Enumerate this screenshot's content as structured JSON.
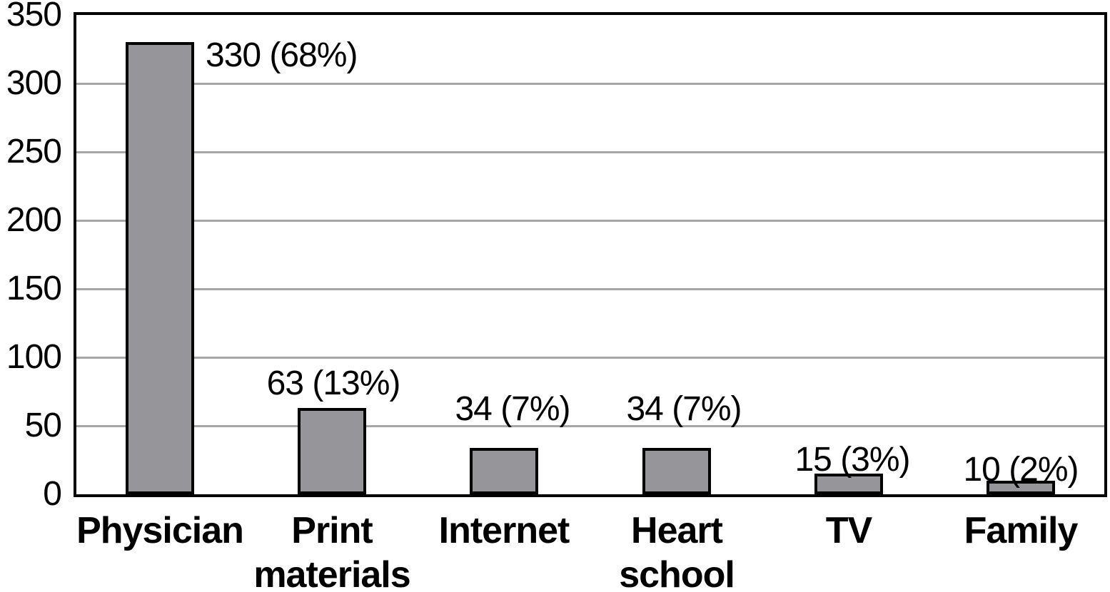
{
  "chart_data": {
    "type": "bar",
    "title": "",
    "xlabel": "",
    "ylabel": "",
    "categories": [
      "Physician",
      "Print materials",
      "Internet",
      "Heart school",
      "TV",
      "Family"
    ],
    "category_lines": [
      [
        "Physician"
      ],
      [
        "Print",
        "materials"
      ],
      [
        "Internet"
      ],
      [
        "Heart",
        "school"
      ],
      [
        "TV"
      ],
      [
        "Family"
      ]
    ],
    "values": [
      330,
      63,
      34,
      34,
      15,
      10
    ],
    "percents": [
      68,
      13,
      7,
      7,
      3,
      2
    ],
    "data_labels": [
      "330 (68%)",
      "63 (13%)",
      "34 (7%)",
      "34 (7%)",
      "15 (3%)",
      "10 (2%)"
    ],
    "y_ticks": [
      "350",
      "300",
      "250",
      "200",
      "150",
      "100",
      "50",
      "0"
    ],
    "y_tick_values": [
      350,
      300,
      250,
      200,
      150,
      100,
      50,
      0
    ],
    "ylim": [
      0,
      350
    ],
    "grid": "horizontal-only",
    "legend": "none",
    "colors": {
      "bar_fill": "#96969a",
      "bar_border": "#000000",
      "gridline": "#a7a7aa",
      "frame": "#000000",
      "text": "#000000",
      "background": "#ffffff"
    }
  }
}
